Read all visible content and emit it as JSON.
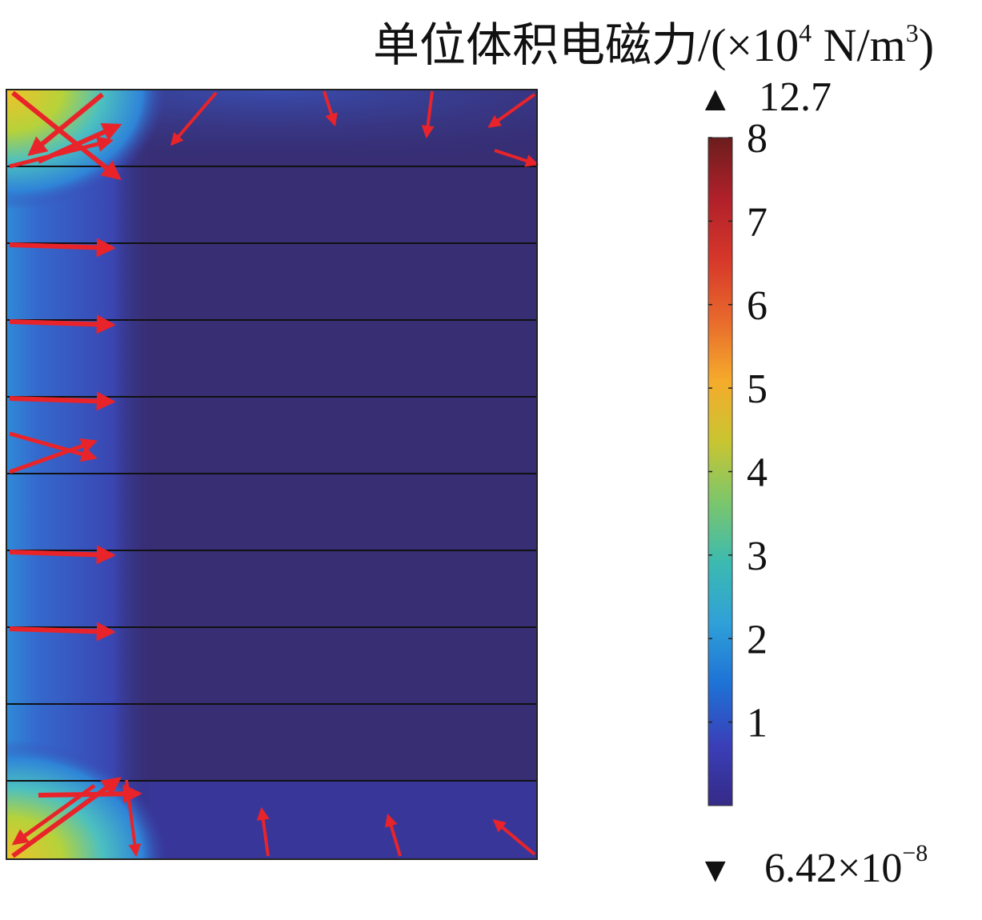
{
  "chart_data": {
    "type": "heatmap",
    "title": "单位体积电磁力/(×10⁴ N/m³)",
    "title_parts": {
      "main": "单位体积电磁力/(×10",
      "exp": "4",
      "unit_a": " N/m",
      "unit_exp": "3",
      "close": ")"
    },
    "colorbar": {
      "min": 0,
      "max": 8,
      "ticks": [
        "1",
        "2",
        "3",
        "4",
        "5",
        "6",
        "7",
        "8"
      ],
      "colormap": [
        "#352a87",
        "#3a3fb8",
        "#1e72d6",
        "#2fa0d8",
        "#3cbab0",
        "#7cc66b",
        "#c9c531",
        "#f5ab2c",
        "#e8692c",
        "#d6372a",
        "#b0202a",
        "#6b1d1d"
      ],
      "max_marker": {
        "symbol": "▲",
        "value": "12.7"
      },
      "min_marker": {
        "symbol": "▼",
        "value_main": "6.42×10",
        "value_exp": "−8"
      }
    },
    "layers": 8,
    "field": {
      "background_color": "#372e74",
      "edge_glow_color": "#3a56c8",
      "hot_corner_colors": [
        "#f2c12a",
        "#b6d23a",
        "#4cc0c0",
        "#2f84d8"
      ],
      "arrow_color": "#e8242a"
    },
    "arrows": {
      "left_side_rows": [
        {
          "row": 1,
          "kind": "right"
        },
        {
          "row": 2,
          "kind": "right"
        },
        {
          "row": 3,
          "kind": "right"
        },
        {
          "row": 4,
          "kind": "converge"
        },
        {
          "row": 5,
          "kind": "right"
        },
        {
          "row": 6,
          "kind": "right"
        }
      ],
      "top_edge": "inward",
      "bottom_edge": "inward"
    }
  }
}
